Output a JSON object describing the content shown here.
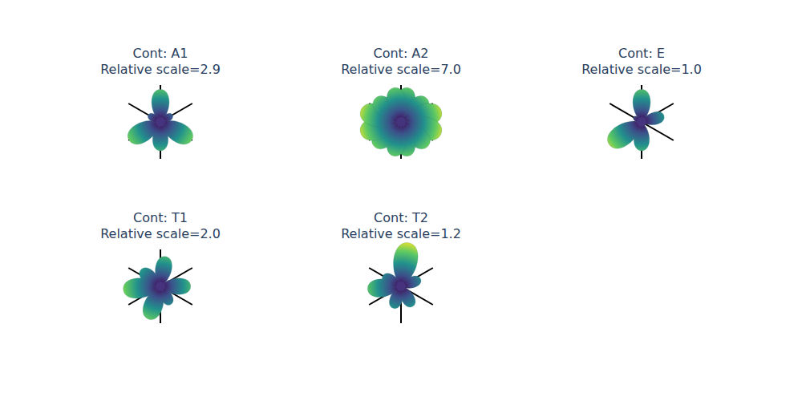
{
  "chart_data": [
    {
      "type": "polar_lobes",
      "title": "Cont: A1",
      "subtitle": "Relative scale=2.9",
      "theta": [
        0,
        60,
        120,
        180,
        240,
        300
      ],
      "r": [
        0.7,
        0.3,
        0.78,
        0.62,
        0.78,
        0.3
      ]
    },
    {
      "type": "polar_lobes",
      "title": "Cont: A2",
      "subtitle": "Relative scale=7.0",
      "theta": [
        12,
        48,
        75,
        105,
        132,
        168,
        192,
        228,
        255,
        285,
        312,
        348
      ],
      "r": [
        0.75,
        0.75,
        0.9,
        0.9,
        0.78,
        0.75,
        0.75,
        0.78,
        0.9,
        0.9,
        0.75,
        0.75
      ]
    },
    {
      "type": "polar_lobes",
      "title": "Cont: E",
      "subtitle": "Relative scale=1.0",
      "theta": [
        0,
        75,
        180,
        235,
        300
      ],
      "r": [
        0.7,
        0.5,
        0.62,
        0.85,
        0.2
      ]
    },
    {
      "type": "polar_lobes",
      "title": "Cont: T1",
      "subtitle": "Relative scale=2.0",
      "theta": [
        10,
        90,
        150,
        200,
        265,
        310
      ],
      "r": [
        0.65,
        0.65,
        0.45,
        0.75,
        0.8,
        0.55
      ]
    },
    {
      "type": "polar_lobes",
      "title": "Cont: T2",
      "subtitle": "Relative scale=1.2",
      "theta": [
        10,
        70,
        150,
        200,
        265,
        300
      ],
      "r": [
        0.95,
        0.45,
        0.5,
        0.5,
        0.72,
        0.45
      ]
    }
  ]
}
